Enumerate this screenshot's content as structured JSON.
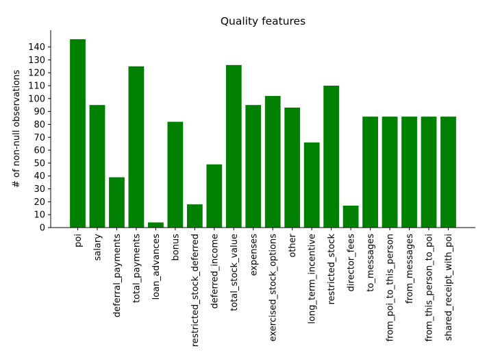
{
  "chart_data": {
    "type": "bar",
    "title": "Quality features",
    "xlabel": "",
    "ylabel": "# of non-null observations",
    "ylim": [
      0,
      145
    ],
    "yticks": [
      0,
      10,
      20,
      30,
      40,
      50,
      60,
      70,
      80,
      90,
      100,
      110,
      120,
      130,
      140
    ],
    "grid": false,
    "bar_color": "#008000",
    "categories": [
      "poi",
      "salary",
      "deferral_payments",
      "total_payments",
      "loan_advances",
      "bonus",
      "restricted_stock_deferred",
      "deferred_income",
      "total_stock_value",
      "expenses",
      "exercised_stock_options",
      "other",
      "long_term_incentive",
      "restricted_stock",
      "director_fees",
      "to_messages",
      "from_poi_to_this_person",
      "from_messages",
      "from_this_person_to_poi",
      "shared_receipt_with_poi"
    ],
    "values": [
      146,
      95,
      39,
      125,
      4,
      82,
      18,
      49,
      126,
      95,
      102,
      93,
      66,
      110,
      17,
      86,
      86,
      86,
      86,
      86
    ]
  }
}
